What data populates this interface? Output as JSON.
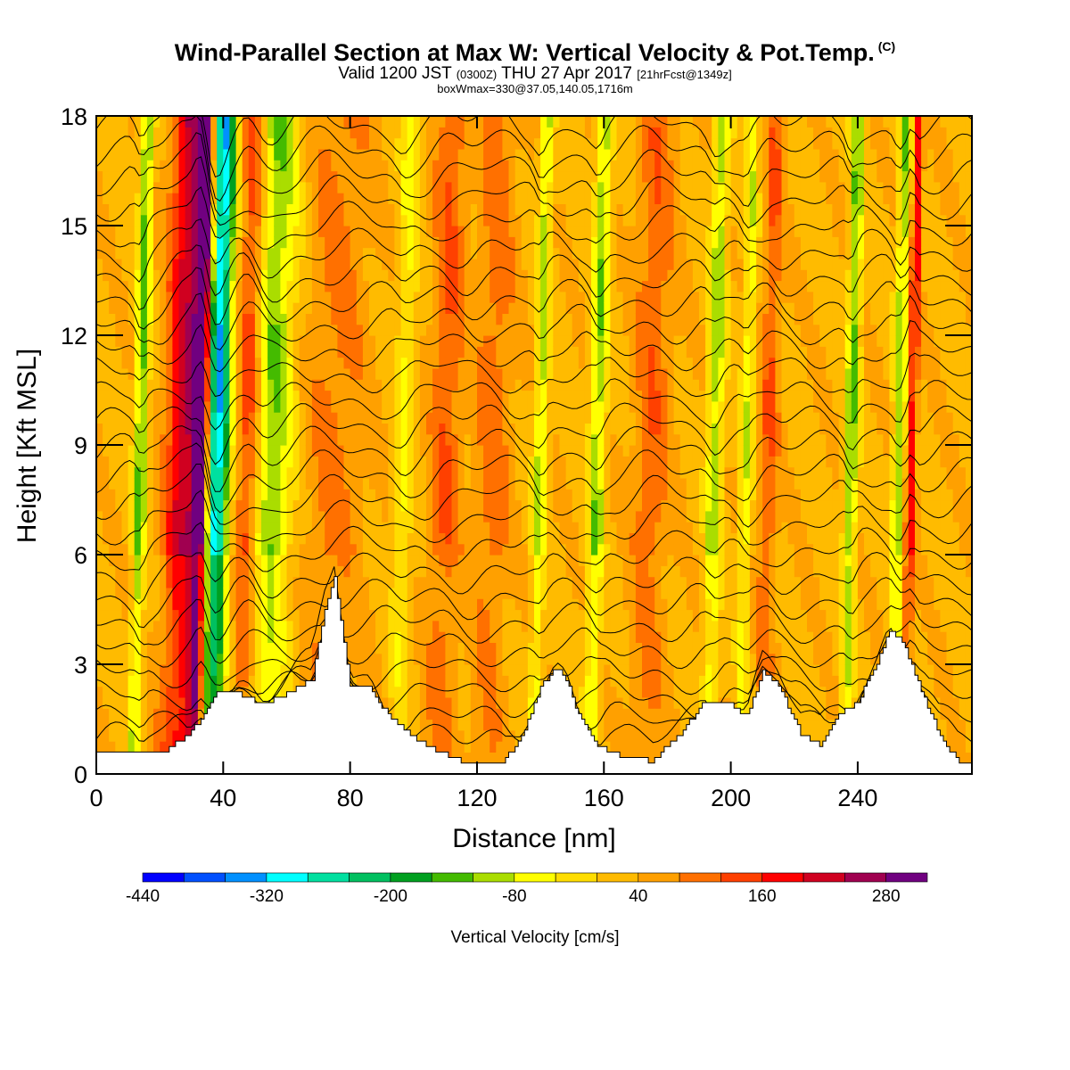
{
  "title": {
    "main": "Wind-Parallel Section at Max W: Vertical Velocity & Pot.Temp.",
    "copyright": "(C)",
    "valid_prefix": "Valid 1200 JST",
    "valid_utc": "(0300Z)",
    "valid_date": "THU 27 Apr 2017",
    "forecast": "[21hrFcst@1349z]",
    "box": "boxWmax=330@37.05,140.05,1716m"
  },
  "chart_data": {
    "type": "heatmap",
    "xlabel": "Distance [nm]",
    "ylabel": "Height [Kft MSL]",
    "xlim": [
      0,
      276
    ],
    "ylim": [
      0,
      18
    ],
    "x_ticks": [
      "0",
      "40",
      "80",
      "120",
      "160",
      "200",
      "240"
    ],
    "y_ticks": [
      "0",
      "3",
      "6",
      "9",
      "12",
      "15",
      "18"
    ],
    "x_tick_values": [
      0,
      40,
      80,
      120,
      160,
      200,
      240
    ],
    "y_tick_values": [
      0,
      3,
      6,
      9,
      12,
      15,
      18
    ],
    "colorbar": {
      "label": "Vertical Velocity [cm/s]",
      "min": -440,
      "max": 320,
      "step": 40,
      "tick_labels": [
        "-440",
        "-320",
        "-200",
        "-80",
        "40",
        "160",
        "280"
      ],
      "tick_values": [
        -440,
        -320,
        -200,
        -80,
        40,
        160,
        280
      ],
      "colors": [
        "#0000ff",
        "#0050ff",
        "#0090ff",
        "#00ffff",
        "#00e0a0",
        "#00c060",
        "#00a020",
        "#44bb00",
        "#aadd00",
        "#ffff00",
        "#ffdd00",
        "#ffbb00",
        "#ffa000",
        "#ff7000",
        "#ff4000",
        "#ff0000",
        "#d00020",
        "#a00050",
        "#700080"
      ]
    },
    "background_value": 30,
    "velocity_features": [
      {
        "x": 28,
        "w": 6,
        "v": 200
      },
      {
        "x": 33,
        "w": 2.5,
        "v": 320
      },
      {
        "x": 38,
        "w": 4,
        "v": -360
      },
      {
        "x": 14,
        "w": 2,
        "v": -170
      },
      {
        "x": 48,
        "w": 4,
        "v": 150
      },
      {
        "x": 55,
        "w": 7,
        "v": -150
      },
      {
        "x": 75,
        "w": 10,
        "v": 60
      },
      {
        "x": 97,
        "w": 3,
        "v": -80
      },
      {
        "x": 110,
        "w": 5,
        "v": 90
      },
      {
        "x": 125,
        "w": 6,
        "v": 70
      },
      {
        "x": 140,
        "w": 2,
        "v": -130
      },
      {
        "x": 158,
        "w": 2.5,
        "v": -140
      },
      {
        "x": 175,
        "w": 6,
        "v": 80
      },
      {
        "x": 195,
        "w": 2.5,
        "v": -130
      },
      {
        "x": 205,
        "w": 2,
        "v": -100
      },
      {
        "x": 212,
        "w": 3,
        "v": 90
      },
      {
        "x": 238,
        "w": 2,
        "v": -160
      },
      {
        "x": 253,
        "w": 2,
        "v": -140
      },
      {
        "x": 257,
        "w": 1.5,
        "v": 160
      }
    ],
    "terrain": [
      [
        0,
        0.65
      ],
      [
        10,
        0.65
      ],
      [
        22,
        0.65
      ],
      [
        28,
        1.0
      ],
      [
        34,
        1.6
      ],
      [
        38,
        2.2
      ],
      [
        45,
        2.2
      ],
      [
        52,
        1.9
      ],
      [
        60,
        2.2
      ],
      [
        68,
        2.6
      ],
      [
        72,
        4.5
      ],
      [
        75,
        5.4
      ],
      [
        77,
        4.2
      ],
      [
        80,
        2.4
      ],
      [
        86,
        2.4
      ],
      [
        92,
        1.6
      ],
      [
        100,
        1.0
      ],
      [
        108,
        0.6
      ],
      [
        115,
        0.35
      ],
      [
        120,
        0.3
      ],
      [
        128,
        0.3
      ],
      [
        134,
        1.0
      ],
      [
        140,
        2.4
      ],
      [
        145,
        2.9
      ],
      [
        148,
        2.6
      ],
      [
        152,
        1.6
      ],
      [
        158,
        0.8
      ],
      [
        165,
        0.5
      ],
      [
        175,
        0.35
      ],
      [
        185,
        1.2
      ],
      [
        192,
        2.0
      ],
      [
        200,
        1.9
      ],
      [
        205,
        1.6
      ],
      [
        210,
        2.8
      ],
      [
        215,
        2.4
      ],
      [
        222,
        1.1
      ],
      [
        228,
        0.8
      ],
      [
        234,
        1.6
      ],
      [
        240,
        2.0
      ],
      [
        246,
        3.0
      ],
      [
        250,
        3.9
      ],
      [
        254,
        3.6
      ],
      [
        260,
        2.3
      ],
      [
        266,
        1.0
      ],
      [
        272,
        0.3
      ],
      [
        276,
        0.3
      ]
    ],
    "theta_contours": {
      "base": 300,
      "interval": 2,
      "count": 26
    }
  }
}
